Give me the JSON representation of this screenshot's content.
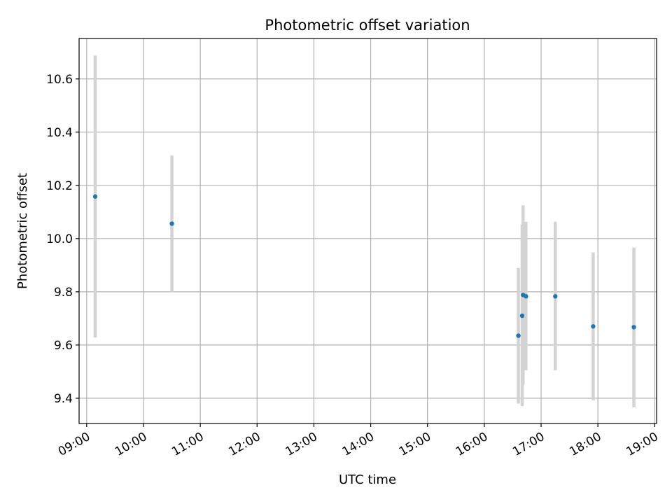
{
  "chart_data": {
    "type": "scatter",
    "title": "Photometric offset variation",
    "xlabel": "UTC time",
    "ylabel": "Photometric offset",
    "x_ticks": [
      "09:00",
      "10:00",
      "11:00",
      "12:00",
      "13:00",
      "14:00",
      "15:00",
      "16:00",
      "17:00",
      "18:00",
      "19:00"
    ],
    "y_ticks": [
      "9.4",
      "9.6",
      "9.8",
      "10.0",
      "10.2",
      "10.4",
      "10.6"
    ],
    "xlim": [
      "08:52",
      "19:02"
    ],
    "ylim": [
      9.305,
      10.752
    ],
    "grid": true,
    "point_color": "#1f77b4",
    "errorbar_color": "#d3d3d3",
    "points": [
      {
        "t": "09:09",
        "y": 10.158,
        "err_low": 9.628,
        "err_high": 10.688
      },
      {
        "t": "10:30",
        "y": 10.056,
        "err_low": 9.8,
        "err_high": 10.312
      },
      {
        "t": "16:36",
        "y": 9.635,
        "err_low": 9.38,
        "err_high": 9.89
      },
      {
        "t": "16:40",
        "y": 9.71,
        "err_low": 9.37,
        "err_high": 10.053
      },
      {
        "t": "16:41",
        "y": 9.788,
        "err_low": 9.45,
        "err_high": 10.125
      },
      {
        "t": "16:44",
        "y": 9.783,
        "err_low": 9.505,
        "err_high": 10.063
      },
      {
        "t": "17:15",
        "y": 9.783,
        "err_low": 9.505,
        "err_high": 10.063
      },
      {
        "t": "17:55",
        "y": 9.67,
        "err_low": 9.392,
        "err_high": 9.948
      },
      {
        "t": "18:38",
        "y": 9.667,
        "err_low": 9.366,
        "err_high": 9.966
      }
    ]
  }
}
